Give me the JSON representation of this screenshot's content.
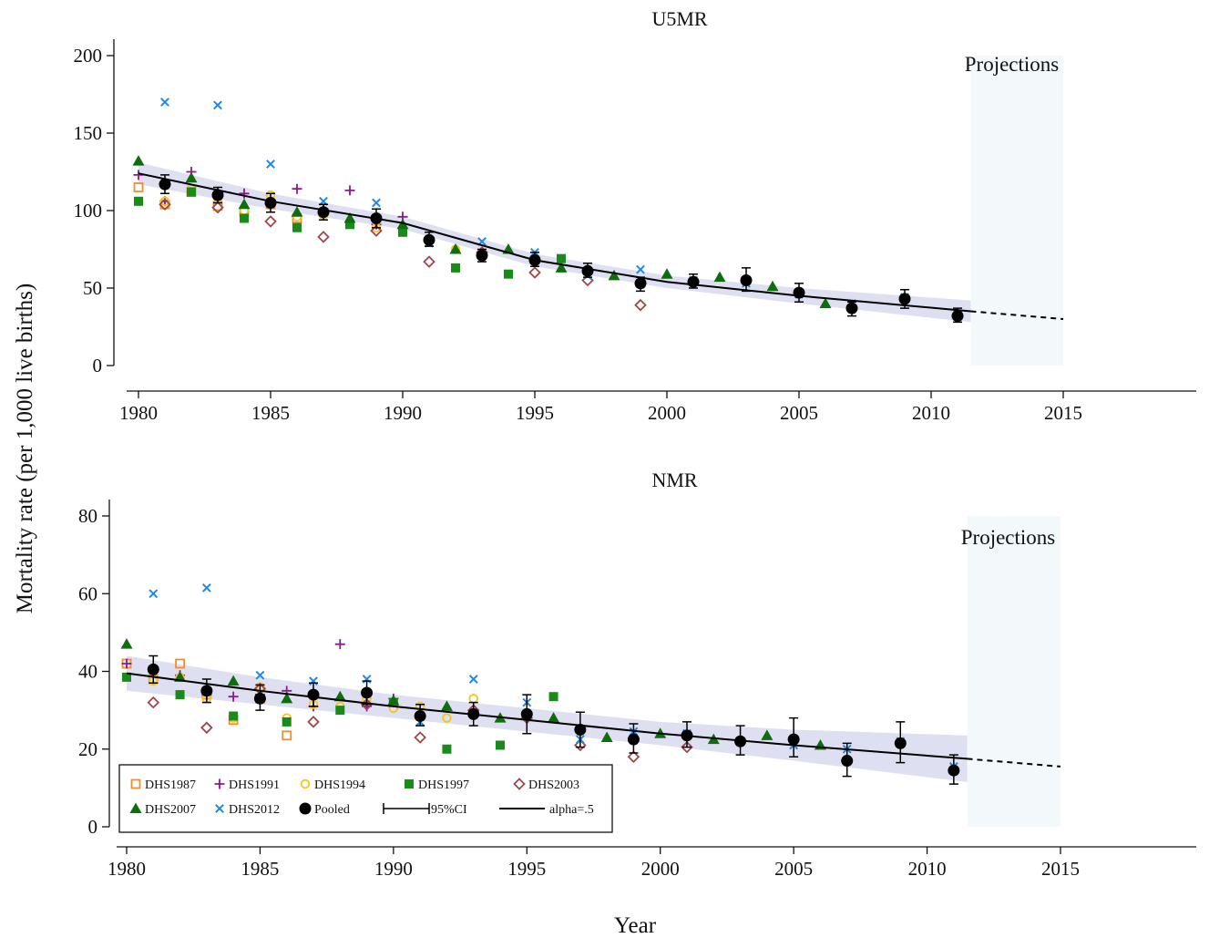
{
  "chart_data": {
    "type": "scatter",
    "xlabel": "Year",
    "ylabel": "Mortality rate (per 1,000 live births)",
    "projection_label": "Projections",
    "projection_region": [
      2011.5,
      2015
    ],
    "legend": {
      "items": [
        "DHS1987",
        "DHS1991",
        "DHS1994",
        "DHS1997",
        "DHS2003",
        "DHS2007",
        "DHS2012",
        "Pooled",
        "95%CI",
        "alpha=.5"
      ],
      "placement": "bottom-left of lower panel"
    },
    "styles": {
      "DHS1987": {
        "marker": "square-open",
        "color": "#F28E2B"
      },
      "DHS1991": {
        "marker": "plus",
        "color": "#8B1A8B"
      },
      "DHS1994": {
        "marker": "circle-open",
        "color": "#F5C518"
      },
      "DHS1997": {
        "marker": "square",
        "color": "#1A8A1A"
      },
      "DHS2003": {
        "marker": "diamond-open",
        "color": "#A0454B"
      },
      "DHS2007": {
        "marker": "triangle",
        "color": "#0E6E0E"
      },
      "DHS2012": {
        "marker": "x",
        "color": "#1E88E5"
      },
      "Pooled": {
        "marker": "circle",
        "color": "#000000"
      },
      "band": "#D8DBF0",
      "projection_fill": "#F3F8FB"
    },
    "panels": [
      {
        "title": "U5MR",
        "xticks": [
          1980,
          1985,
          1990,
          1995,
          2000,
          2005,
          2010,
          2015
        ],
        "yticks": [
          0,
          50,
          100,
          150,
          200
        ],
        "xlim": [
          1979.5,
          2020.5
        ],
        "ylim": [
          0,
          208
        ],
        "series": [
          {
            "name": "DHS1987",
            "x": [
              1980,
              1981,
              1982,
              1983,
              1984,
              1985,
              1986
            ],
            "y": [
              115,
              104,
              112,
              103,
              99,
              104,
              95
            ]
          },
          {
            "name": "DHS1991",
            "x": [
              1980,
              1981,
              1982,
              1983,
              1984,
              1985,
              1986,
              1987,
              1988,
              1989,
              1990
            ],
            "y": [
              123,
              106,
              125,
              111,
              111,
              105,
              114,
              101,
              113,
              91,
              96
            ]
          },
          {
            "name": "DHS1994",
            "x": [
              1981,
              1982,
              1983,
              1984,
              1985,
              1986,
              1987,
              1988,
              1989,
              1990,
              1991,
              1992,
              1993
            ],
            "y": [
              106,
              114,
              108,
              100,
              110,
              96,
              97,
              92,
              89,
              87,
              80,
              75,
              72
            ]
          },
          {
            "name": "DHS1997",
            "x": [
              1980,
              1982,
              1984,
              1986,
              1988,
              1990,
              1992,
              1994,
              1996
            ],
            "y": [
              106,
              112,
              95,
              89,
              91,
              86,
              63,
              59,
              69
            ]
          },
          {
            "name": "DHS2003",
            "x": [
              1981,
              1983,
              1985,
              1987,
              1989,
              1991,
              1993,
              1995,
              1997,
              1999,
              2001
            ],
            "y": [
              104,
              102,
              93,
              83,
              87,
              67,
              73,
              60,
              55,
              39,
              54
            ]
          },
          {
            "name": "DHS2007",
            "x": [
              1980,
              1982,
              1984,
              1986,
              1988,
              1990,
              1992,
              1994,
              1996,
              1998,
              2000,
              2002,
              2004,
              2006
            ],
            "y": [
              132,
              121,
              104,
              99,
              95,
              91,
              75,
              75,
              63,
              58,
              59,
              57,
              51,
              40
            ]
          },
          {
            "name": "DHS2012",
            "x": [
              1981,
              1983,
              1985,
              1987,
              1989,
              1991,
              1993,
              1995,
              1997,
              1999,
              2001,
              2003,
              2005,
              2007,
              2009,
              2011
            ],
            "y": [
              170,
              168,
              130,
              106,
              105,
              79,
              80,
              73,
              58,
              62,
              55,
              53,
              46,
              40,
              44,
              33
            ]
          },
          {
            "name": "Pooled",
            "x": [
              1981,
              1983,
              1985,
              1987,
              1989,
              1991,
              1993,
              1995,
              1997,
              1999,
              2001,
              2003,
              2005,
              2007,
              2009,
              2011
            ],
            "y": [
              117,
              110,
              105,
              99,
              95,
              81,
              71,
              68,
              61,
              53,
              54,
              55,
              47,
              37,
              43,
              32
            ],
            "ci_low": [
              111,
              105,
              99,
              94,
              89,
              77,
              67,
              64,
              57,
              48,
              50,
              48,
              41,
              32,
              37,
              28
            ],
            "ci_high": [
              123,
              115,
              111,
              104,
              101,
              86,
              75,
              73,
              66,
              57,
              59,
              63,
              53,
              41,
              49,
              37
            ]
          }
        ],
        "fit": {
          "x": [
            1980,
            1985,
            1990,
            1995,
            2000,
            2005,
            2011.5
          ],
          "y": [
            124,
            106,
            92,
            68,
            54,
            45,
            35
          ],
          "band_halfwidth": [
            7,
            5,
            4,
            4,
            4,
            5,
            7
          ]
        },
        "projection": {
          "x": [
            2011.5,
            2015
          ],
          "y": [
            35,
            30
          ]
        }
      },
      {
        "title": "NMR",
        "xticks": [
          1980,
          1985,
          1990,
          1995,
          2000,
          2005,
          2010,
          2015
        ],
        "yticks": [
          0,
          20,
          40,
          60,
          80
        ],
        "xlim": [
          1979.5,
          2020.5
        ],
        "ylim": [
          0,
          84
        ],
        "series": [
          {
            "name": "DHS1987",
            "x": [
              1980,
              1981,
              1982,
              1983,
              1984,
              1985,
              1986
            ],
            "y": [
              42,
              38,
              42,
              34,
              27.5,
              33,
              23.5
            ]
          },
          {
            "name": "DHS1991",
            "x": [
              1980,
              1981,
              1982,
              1983,
              1984,
              1985,
              1986,
              1987,
              1988,
              1989,
              1990
            ],
            "y": [
              42,
              41,
              39,
              34,
              33.5,
              34,
              35,
              31,
              47,
              31,
              33
            ]
          },
          {
            "name": "DHS1994",
            "x": [
              1981,
              1982,
              1983,
              1984,
              1985,
              1986,
              1987,
              1988,
              1989,
              1990,
              1991,
              1992,
              1993
            ],
            "y": [
              37.5,
              38.5,
              33,
              28,
              36,
              28,
              31.5,
              31,
              33,
              30.5,
              31,
              28,
              33
            ]
          },
          {
            "name": "DHS1997",
            "x": [
              1980,
              1982,
              1984,
              1986,
              1988,
              1990,
              1992,
              1994,
              1996
            ],
            "y": [
              38.5,
              34,
              28.5,
              27,
              30,
              32,
              20,
              21,
              33.5
            ]
          },
          {
            "name": "DHS2003",
            "x": [
              1981,
              1983,
              1985,
              1987,
              1989,
              1991,
              1993,
              1995,
              1997,
              1999,
              2001
            ],
            "y": [
              32,
              25.5,
              35.5,
              27,
              31.5,
              23,
              30,
              28,
              21,
              18,
              20.5
            ]
          },
          {
            "name": "DHS2007",
            "x": [
              1980,
              1982,
              1984,
              1986,
              1988,
              1990,
              1992,
              1994,
              1996,
              1998,
              2000,
              2002,
              2004,
              2006
            ],
            "y": [
              47,
              38.5,
              37.5,
              33,
              33.5,
              32.5,
              31,
              28,
              28,
              23,
              24,
              22.5,
              23.5,
              21
            ]
          },
          {
            "name": "DHS2012",
            "x": [
              1981,
              1983,
              1985,
              1987,
              1989,
              1991,
              1993,
              1995,
              1997,
              1999,
              2001,
              2003,
              2005,
              2007,
              2009,
              2011
            ],
            "y": [
              60,
              61.5,
              39,
              37.5,
              38,
              27,
              38,
              32,
              22.5,
              24.5,
              24,
              22,
              21,
              20,
              22,
              15.5
            ]
          },
          {
            "name": "Pooled",
            "x": [
              1981,
              1983,
              1985,
              1987,
              1989,
              1991,
              1993,
              1995,
              1997,
              1999,
              2001,
              2003,
              2005,
              2007,
              2009,
              2011
            ],
            "y": [
              40.5,
              35,
              33,
              34,
              34.5,
              28.5,
              29,
              29,
              25,
              22.5,
              23.5,
              22,
              22.5,
              17,
              21.5,
              14.5
            ],
            "ci_low": [
              37,
              32,
              30,
              31,
              31.5,
              26,
              26,
              24,
              20.5,
              19,
              20.5,
              18.5,
              18,
              13,
              16.5,
              11
            ],
            "ci_high": [
              44,
              38,
              36.5,
              37,
              37.5,
              31.5,
              32,
              34,
              29.5,
              26.5,
              27,
              26,
              28,
              21.5,
              27,
              18.5
            ]
          }
        ],
        "fit": {
          "x": [
            1980,
            1985,
            1990,
            1995,
            2000,
            2005,
            2011.5
          ],
          "y": [
            39.5,
            35,
            31,
            27.5,
            24,
            21,
            17.5
          ],
          "band_halfwidth": [
            4.5,
            3.5,
            3,
            3,
            3,
            4,
            6
          ]
        },
        "projection": {
          "x": [
            2011.5,
            2015
          ],
          "y": [
            17.5,
            15.5
          ]
        }
      }
    ]
  }
}
